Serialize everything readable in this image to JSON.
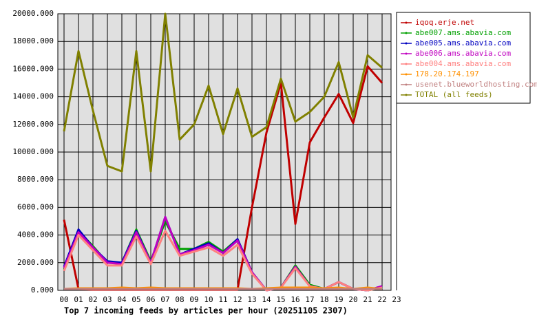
{
  "chart_data": {
    "type": "line",
    "title": "Top 7 incoming feeds by articles per hour (20251105 2307)",
    "categories": [
      "00",
      "01",
      "02",
      "03",
      "04",
      "05",
      "06",
      "07",
      "08",
      "09",
      "10",
      "11",
      "12",
      "13",
      "14",
      "15",
      "16",
      "17",
      "18",
      "19",
      "20",
      "21",
      "22",
      "23"
    ],
    "ylim": [
      0,
      20000
    ],
    "yticks": [
      {
        "value": 0,
        "label": "0.000"
      },
      {
        "value": 2000,
        "label": "2000.000"
      },
      {
        "value": 4000,
        "label": "4000.000"
      },
      {
        "value": 6000,
        "label": "6000.000"
      },
      {
        "value": 8000,
        "label": "8000.000"
      },
      {
        "value": 10000,
        "label": "10000.000"
      },
      {
        "value": 12000,
        "label": "12000.000"
      },
      {
        "value": 14000,
        "label": "14000.000"
      },
      {
        "value": 16000,
        "label": "16000.000"
      },
      {
        "value": 18000,
        "label": "18000.000"
      },
      {
        "value": 20000,
        "label": "20000.000"
      }
    ],
    "grid": true,
    "series": [
      {
        "name": "iqoq.erje.net",
        "color": "#c00000",
        "values": [
          5100,
          100,
          50,
          50,
          50,
          50,
          50,
          50,
          50,
          50,
          50,
          50,
          50,
          6000,
          11400,
          15000,
          4800,
          10700,
          12500,
          14200,
          12100,
          16200,
          15000,
          null
        ]
      },
      {
        "name": "abe007.ams.abavia.com",
        "color": "#00a000",
        "values": [
          1500,
          4300,
          3200,
          2000,
          2000,
          4400,
          2100,
          5000,
          3000,
          3000,
          3500,
          2800,
          3700,
          1300,
          0,
          200,
          1800,
          400,
          100,
          600,
          100,
          0,
          200,
          null
        ]
      },
      {
        "name": "abe005.ams.abavia.com",
        "color": "#0000c0",
        "values": [
          1700,
          4400,
          3100,
          2100,
          2000,
          4300,
          2000,
          5300,
          2600,
          3000,
          3400,
          2700,
          3700,
          1300,
          0,
          200,
          1700,
          300,
          100,
          600,
          100,
          0,
          300,
          null
        ]
      },
      {
        "name": "abe006.ams.abavia.com",
        "color": "#c000c0",
        "values": [
          1600,
          4200,
          3100,
          2000,
          1900,
          4200,
          2000,
          5300,
          2600,
          2900,
          3300,
          2700,
          3600,
          1300,
          0,
          200,
          1700,
          300,
          100,
          600,
          100,
          0,
          300,
          null
        ]
      },
      {
        "name": "abe004.ams.abavia.com",
        "color": "#ff8080",
        "values": [
          1400,
          4000,
          2900,
          1800,
          1800,
          3900,
          1900,
          4300,
          2500,
          2800,
          3100,
          2500,
          3300,
          1200,
          0,
          200,
          1600,
          300,
          100,
          600,
          100,
          0,
          200,
          null
        ]
      },
      {
        "name": "178.20.174.197",
        "color": "#ff9000",
        "values": [
          100,
          150,
          150,
          150,
          200,
          150,
          200,
          150,
          150,
          150,
          150,
          150,
          150,
          100,
          150,
          200,
          200,
          200,
          150,
          200,
          100,
          200,
          100,
          null
        ]
      },
      {
        "name": "usenet.blueworldhosting.com",
        "color": "#c08080",
        "values": [
          100,
          100,
          100,
          100,
          100,
          100,
          100,
          100,
          100,
          100,
          100,
          100,
          100,
          100,
          100,
          100,
          100,
          100,
          100,
          100,
          100,
          100,
          100,
          null
        ]
      },
      {
        "name": "TOTAL (all feeds)",
        "color": "#808000",
        "values": [
          11500,
          17300,
          13000,
          9000,
          8600,
          17300,
          8600,
          20000,
          10900,
          12000,
          14800,
          11300,
          14600,
          11100,
          11800,
          15300,
          12200,
          12900,
          14000,
          16500,
          12500,
          17000,
          16100,
          null
        ]
      }
    ]
  }
}
